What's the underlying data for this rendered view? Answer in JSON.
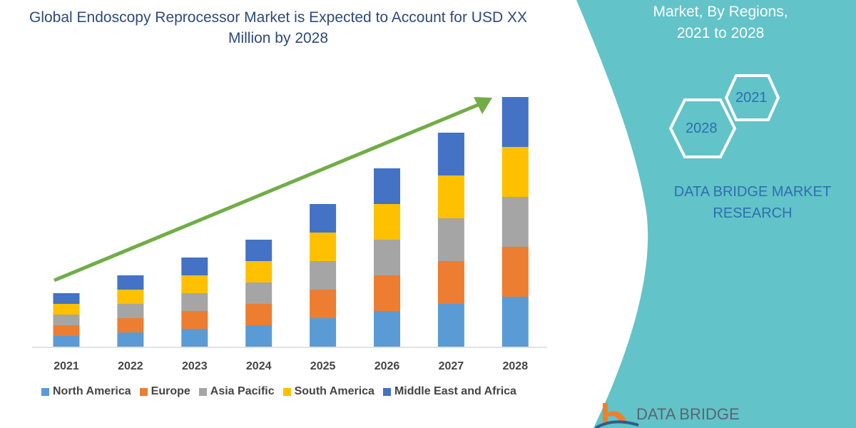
{
  "chart_data": {
    "type": "bar",
    "stacked": true,
    "title": "Global Endoscopy Reprocessor Market is Expected to Account for USD XX Million by 2028",
    "categories": [
      "2021",
      "2022",
      "2023",
      "2024",
      "2025",
      "2026",
      "2027",
      "2028"
    ],
    "series": [
      {
        "name": "North America",
        "color": "#5b9bd5",
        "values": [
          1.5,
          2,
          2.5,
          3,
          4,
          5,
          6,
          7
        ]
      },
      {
        "name": "Europe",
        "color": "#ed7d31",
        "values": [
          1.5,
          2,
          2.5,
          3,
          4,
          5,
          6,
          7
        ]
      },
      {
        "name": "Asia Pacific",
        "color": "#a5a5a5",
        "values": [
          1.5,
          2,
          2.5,
          3,
          4,
          5,
          6,
          7
        ]
      },
      {
        "name": "South America",
        "color": "#ffc000",
        "values": [
          1.5,
          2,
          2.5,
          3,
          4,
          5,
          6,
          7
        ]
      },
      {
        "name": "Middle East and Africa",
        "color": "#4472c4",
        "values": [
          1.5,
          2,
          2.5,
          3,
          4,
          5,
          6,
          7
        ]
      }
    ],
    "xlabel": "",
    "ylabel": "",
    "grid": false,
    "legend": "bottom",
    "trend_arrow_color": "#70ad47"
  },
  "side_panel": {
    "title_lines": [
      "Market, By Regions,",
      "2021 to 2028"
    ],
    "hex_1": "2021",
    "hex_2": "2028",
    "brand": "DATA BRIDGE MARKET RESEARCH",
    "color": "#62c3c8"
  },
  "logo": {
    "text": "DATA BRIDGE"
  }
}
